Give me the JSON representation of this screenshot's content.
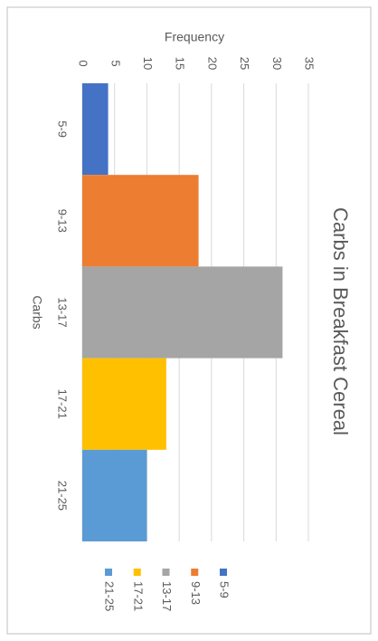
{
  "chart_data": {
    "type": "bar",
    "title": "Carbs in Breakfast Cereal",
    "x_label": "Carbs",
    "y_label": "Frequency",
    "categories": [
      "5-9",
      "9-13",
      "13-17",
      "17-21",
      "21-25"
    ],
    "values": [
      4,
      18,
      31,
      13,
      10
    ],
    "colors": [
      "#4472c4",
      "#ed7d31",
      "#a5a5a5",
      "#ffc000",
      "#5b9bd5"
    ],
    "ylim": [
      0,
      35
    ],
    "yticks": [
      0,
      5,
      10,
      15,
      20,
      25,
      30,
      35
    ],
    "grid": true,
    "legend": "bottom"
  }
}
